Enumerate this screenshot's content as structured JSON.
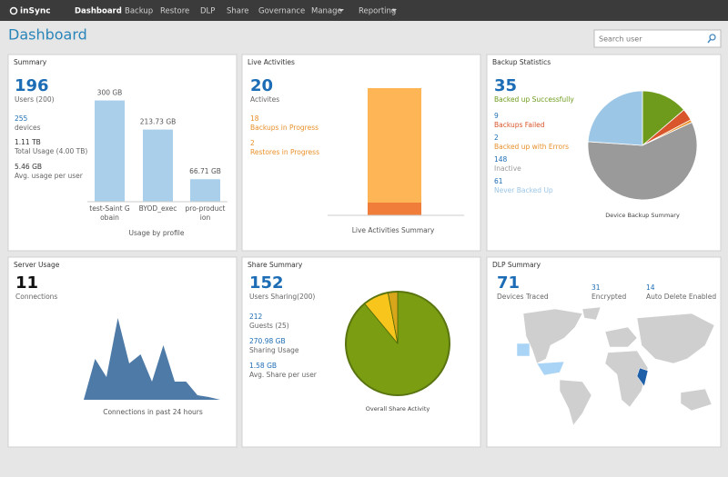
{
  "nav": {
    "brand": "inSync",
    "items": [
      "Dashboard",
      "Backup",
      "Restore",
      "DLP",
      "Share",
      "Governance",
      "Manage",
      "Reporting"
    ]
  },
  "header": {
    "title": "Dashboard",
    "search_placeholder": "Search user"
  },
  "summary": {
    "title": "Summary",
    "stats": [
      {
        "value": "196",
        "label": "Users (200)"
      },
      {
        "value": "255",
        "label": "devices"
      },
      {
        "value": "1.11 TB",
        "label": "Total Usage (4.00 TB)"
      },
      {
        "value": "5.46 GB",
        "label": "Avg. usage per user"
      }
    ],
    "chart": {
      "type": "bar",
      "categories": [
        "test-Saint Gobain",
        "BYOD_exec",
        "pro-production"
      ],
      "values": [
        300,
        213.73,
        66.71
      ],
      "value_labels": [
        "300 GB",
        "213.73 GB",
        "66.71 GB"
      ],
      "ylim": [
        0,
        350
      ],
      "color": "#a9cfeb",
      "caption": "Usage by profile"
    }
  },
  "live": {
    "title": "Live Activities",
    "stats": [
      {
        "value": "20",
        "label": "Activites"
      },
      {
        "value": "18",
        "label": "Backups in Progress"
      },
      {
        "value": "2",
        "label": "Restores in Progress"
      }
    ],
    "chart": {
      "type": "stacked-bar",
      "series": [
        {
          "color": "#f07e3a",
          "values": [
            2
          ]
        },
        {
          "color": "#fdb556",
          "values": [
            18
          ]
        }
      ],
      "ylim": [
        0,
        20
      ],
      "caption": "Live Activities Summary"
    }
  },
  "backup": {
    "title": "Backup Statistics",
    "stats": [
      {
        "value": "35",
        "label": "Backed up Successfully",
        "color": "#6e9b1c"
      },
      {
        "value": "9",
        "label": "Backups Failed",
        "color": "#d9552b"
      },
      {
        "value": "2",
        "label": "Backed up with Errors",
        "color": "#e8902a"
      },
      {
        "value": "148",
        "label": "Inactive",
        "color": "#9a9a9a"
      },
      {
        "value": "61",
        "label": "Never Backed Up",
        "color": "#9cc6e6"
      }
    ],
    "chart": {
      "type": "pie",
      "values": [
        35,
        9,
        2,
        148,
        61
      ],
      "caption": "Device Backup Summary"
    }
  },
  "server": {
    "title": "Server Usage",
    "stats": [
      {
        "value": "11",
        "label": "Connections"
      }
    ],
    "chart": {
      "type": "area",
      "values": [
        0,
        45,
        25,
        90,
        40,
        50,
        20,
        60,
        20,
        20,
        5,
        3,
        0
      ],
      "ylim": [
        0,
        100
      ],
      "color": "#4d7aa6",
      "caption": "Connections in past 24 hours"
    }
  },
  "share": {
    "title": "Share Summary",
    "stats": [
      {
        "value": "152",
        "label": "Users Sharing(200)"
      },
      {
        "value": "212",
        "label": "Guests (25)"
      },
      {
        "value": "270.98 GB",
        "label": "Sharing Usage"
      },
      {
        "value": "1.58 GB",
        "label": "Avg. Share per user"
      }
    ],
    "chart": {
      "type": "pie",
      "values": [
        89,
        8,
        3
      ],
      "colors": [
        "#7a9d12",
        "#f7c51c",
        "#d9a51a"
      ],
      "caption": "Overall Share Activity"
    }
  },
  "dlp": {
    "title": "DLP Summary",
    "stats": [
      {
        "value": "71",
        "label": "Devices Traced"
      },
      {
        "value": "31",
        "label": "Encrypted"
      },
      {
        "value": "14",
        "label": "Auto Delete Enabled"
      }
    ]
  }
}
